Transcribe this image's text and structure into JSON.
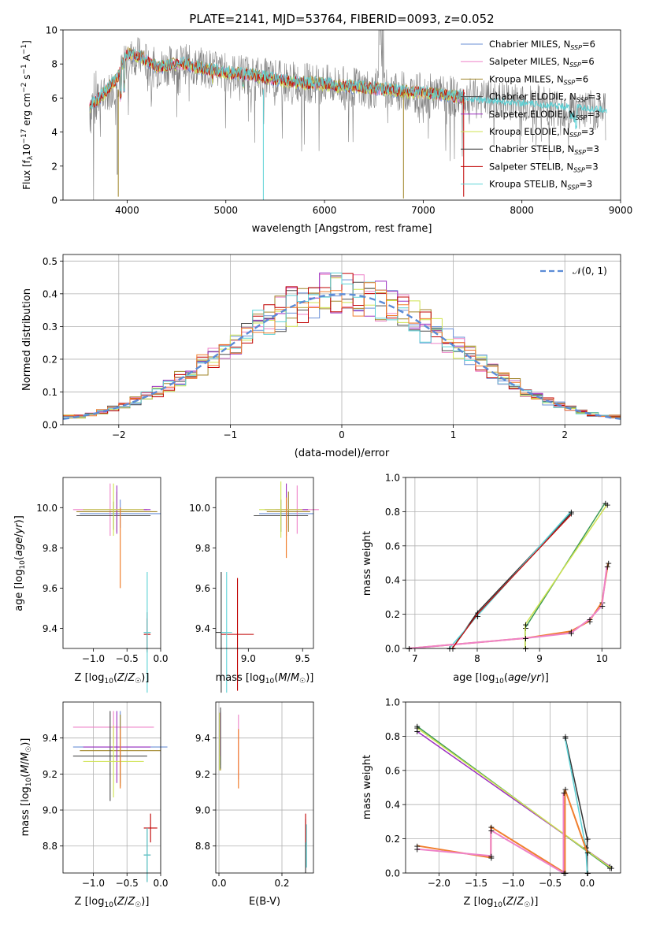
{
  "figure_title": "PLATE=2141, MJD=53764, FIBERID=0093, z=0.052",
  "colors": {
    "Chabrier MILES": "#6a8fd6",
    "Salpeter MILES": "#ee82c8",
    "Kroupa MILES": "#a0862a",
    "Chabrier ELODIE": "#4d4d4d",
    "Salpeter ELODIE": "#9b2fc0",
    "Kroupa ELODIE": "#cfe350",
    "Chabrier STELIB": "#333333",
    "Salpeter STELIB": "#c00000",
    "Kroupa STELIB": "#5ed2d6",
    "Kroupa ELODIE green": "#3c9a55",
    "orange": "#f07f2e",
    "gaussian": "#5b8bd6"
  },
  "chart_data": [
    {
      "id": "spectrum",
      "type": "line",
      "title": "PLATE=2141, MJD=53764, FIBERID=0093, z=0.052",
      "xlabel": "wavelength [Angstrom, rest frame]",
      "ylabel": "Flux [f_λ 10^-17 erg cm^-2 s^-1 A^-1]",
      "xlim": [
        3350,
        9000
      ],
      "ylim": [
        0,
        10
      ],
      "xticks": [
        "4000",
        "5000",
        "6000",
        "7000",
        "8000",
        "9000"
      ],
      "yticks": [
        "0",
        "2",
        "4",
        "6",
        "8",
        "10"
      ],
      "legend": [
        "Chabrier MILES, N_SSP=6",
        "Salpeter MILES, N_SSP=6",
        "Kroupa MILES, N_SSP=6",
        "Chabrier ELODIE, N_SSP=3",
        "Salpeter ELODIE, N_SSP=3",
        "Kroupa ELODIE, N_SSP=3",
        "Chabrier STELIB, N_SSP=3",
        "Salpeter STELIB, N_SSP=3",
        "Kroupa STELIB, N_SSP=3"
      ],
      "legend_loc": "upper right",
      "grid": false,
      "data_continuum": {
        "x": [
          3620,
          3700,
          3800,
          3900,
          4000,
          4100,
          4200,
          4300,
          4400,
          4500,
          4600,
          4700,
          4800,
          4900,
          5000,
          5200,
          5400,
          5600,
          5800,
          6000,
          6200,
          6400,
          6600,
          6800,
          7000,
          7200,
          7400,
          7600,
          7800,
          8000,
          8200,
          8400,
          8600,
          8800
        ],
        "y": [
          5.5,
          5.8,
          6.3,
          7.0,
          8.3,
          8.5,
          8.1,
          7.7,
          7.9,
          8.0,
          8.0,
          7.8,
          7.8,
          7.6,
          7.5,
          7.4,
          7.2,
          7.0,
          6.9,
          6.8,
          6.7,
          6.6,
          6.5,
          6.4,
          6.3,
          6.2,
          6.0,
          5.9,
          5.8,
          5.7,
          5.6,
          5.4,
          5.3,
          5.3
        ]
      },
      "model_continuum": {
        "x": [
          3620,
          3700,
          3800,
          3900,
          4000,
          4100,
          4200,
          4300,
          4400,
          4500,
          4600,
          4700,
          4800,
          4900,
          5000,
          5200,
          5400,
          5600,
          5800,
          6000,
          6200,
          6400,
          6600,
          6800,
          7000,
          7200,
          7400
        ],
        "y": [
          5.5,
          5.9,
          6.5,
          7.2,
          8.6,
          8.5,
          8.2,
          7.8,
          7.9,
          8.0,
          8.0,
          7.8,
          7.7,
          7.6,
          7.5,
          7.4,
          7.2,
          7.0,
          6.9,
          6.8,
          6.7,
          6.6,
          6.5,
          6.4,
          6.3,
          6.2,
          6.0
        ]
      }
    },
    {
      "id": "residuals",
      "type": "line",
      "xlabel": "(data-model)/error",
      "ylabel": "Normed distribution",
      "xlim": [
        -2.5,
        2.5
      ],
      "ylim": [
        0,
        0.52
      ],
      "xticks": [
        "−2",
        "−1",
        "0",
        "1",
        "2"
      ],
      "yticks": [
        "0.0",
        "0.1",
        "0.2",
        "0.3",
        "0.4",
        "0.5"
      ],
      "legend": [
        "𝒩(0, 1)"
      ],
      "grid": true,
      "gaussian": {
        "mu": 0,
        "sigma": 1
      },
      "histogram_bin_width": 0.1,
      "series": [
        {
          "name": "Chabrier MILES",
          "color": "#6a8fd6",
          "values": [
            0.02,
            0.02,
            0.03,
            0.03,
            0.04,
            0.05,
            0.07,
            0.08,
            0.09,
            0.11,
            0.12,
            0.14,
            0.15,
            0.17,
            0.18,
            0.19,
            0.21,
            0.22,
            0.24,
            0.25,
            0.26,
            0.27,
            0.29,
            0.3,
            0.32,
            0.32,
            0.34,
            0.35,
            0.36,
            0.37,
            0.37,
            0.38,
            0.39,
            0.4,
            0.4,
            0.4,
            0.4,
            0.39,
            0.38,
            0.38,
            0.37,
            0.36,
            0.35,
            0.34,
            0.33,
            0.31,
            0.3,
            0.28,
            0.27,
            0.26
          ]
        }
      ]
    },
    {
      "id": "z-age",
      "type": "scatter",
      "xlabel": "Z [log10(Z/Z☉)]",
      "ylabel": "age [log10(age/yr)]",
      "xlim": [
        -1.45,
        0.0
      ],
      "ylim": [
        9.3,
        10.15
      ],
      "xticks": [
        "−1.0",
        "−0.5",
        "0.0"
      ],
      "yticks": [
        "9.4",
        "9.6",
        "9.8",
        "10.0"
      ]
    },
    {
      "id": "mass-age",
      "type": "scatter",
      "xlabel": "mass [log10(M/M☉)]",
      "xlim": [
        8.7,
        9.6
      ],
      "ylim": [
        9.3,
        10.15
      ],
      "xticks": [
        "9.0",
        "9.5"
      ],
      "yticks": [
        "9.4",
        "9.6",
        "9.8",
        "10.0"
      ]
    },
    {
      "id": "age-weight",
      "type": "line",
      "xlabel": "age [log10(age/yr)]",
      "ylabel": "mass weight",
      "xlim": [
        6.85,
        10.3
      ],
      "ylim": [
        0,
        1
      ],
      "xticks": [
        "7",
        "8",
        "9",
        "10"
      ],
      "yticks": [
        "0.0",
        "0.2",
        "0.4",
        "0.6",
        "0.8",
        "1.0"
      ],
      "grid": true
    },
    {
      "id": "z-mass",
      "type": "scatter",
      "xlabel": "Z [log10(Z/Z☉)]",
      "ylabel": "mass [log10(M/M☉)]",
      "xlim": [
        -1.45,
        0.0
      ],
      "ylim": [
        8.65,
        9.6
      ],
      "xticks": [
        "−1.0",
        "−0.5",
        "0.0"
      ],
      "yticks": [
        "8.8",
        "9.0",
        "9.2",
        "9.4"
      ],
      "grid": true
    },
    {
      "id": "ebv-mass",
      "type": "scatter",
      "xlabel": "E(B-V)",
      "xlim": [
        -0.01,
        0.3
      ],
      "ylim": [
        8.65,
        9.6
      ],
      "xticks": [
        "0.0",
        "0.2"
      ],
      "yticks": [
        "8.8",
        "9.0",
        "9.2",
        "9.4"
      ],
      "grid": true
    },
    {
      "id": "zmet-weight",
      "type": "line",
      "xlabel": "Z [log10(Z/Z☉)]",
      "ylabel": "mass weight",
      "xlim": [
        -2.45,
        0.45
      ],
      "ylim": [
        0,
        1
      ],
      "xticks": [
        "−2.0",
        "−1.5",
        "−1.0",
        "−0.5",
        "0.0"
      ],
      "yticks": [
        "0.0",
        "0.2",
        "0.4",
        "0.6",
        "0.8",
        "1.0"
      ],
      "grid": true
    }
  ]
}
